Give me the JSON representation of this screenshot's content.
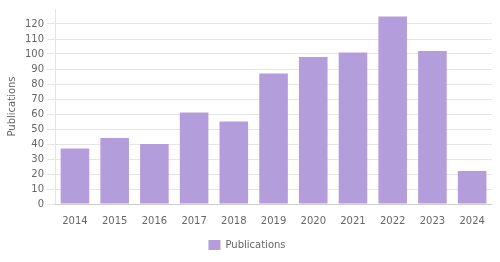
{
  "chart_data": {
    "type": "bar",
    "categories": [
      "2014",
      "2015",
      "2016",
      "2017",
      "2018",
      "2019",
      "2020",
      "2021",
      "2022",
      "2023",
      "2024"
    ],
    "series": [
      {
        "name": "Publications",
        "color": "#b39ddb",
        "values": [
          37,
          44,
          40,
          61,
          55,
          87,
          98,
          101,
          125,
          102,
          22
        ]
      }
    ],
    "ylabel": "Publications",
    "ylim": [
      0,
      130
    ],
    "yticks": [
      0,
      10,
      20,
      30,
      40,
      50,
      60,
      70,
      80,
      90,
      100,
      110,
      120
    ],
    "grid": true,
    "legend": "bottom"
  }
}
